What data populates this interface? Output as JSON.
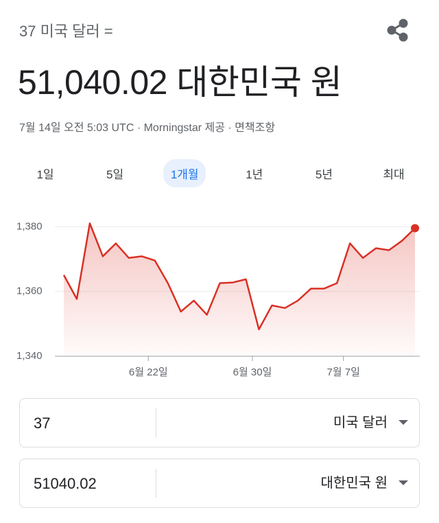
{
  "header": {
    "query": "37 미국 달러 =",
    "result": "51,040.02 대한민국 원",
    "source": "7월 14일 오전 5:03 UTC · Morningstar 제공 · 면책조항"
  },
  "tabs": [
    "1일",
    "5일",
    "1개월",
    "1년",
    "5년",
    "최대"
  ],
  "chart_data": {
    "type": "line",
    "x": [
      0,
      1,
      2,
      3,
      4,
      5,
      6,
      7,
      8,
      9,
      10,
      11,
      12,
      13,
      14,
      15,
      16,
      17,
      18,
      19,
      20,
      21,
      22,
      23,
      24,
      25,
      26,
      27
    ],
    "xlim": [
      0,
      27
    ],
    "xticks": [
      {
        "value": 6.5,
        "label": "6월 22일"
      },
      {
        "value": 14.5,
        "label": "6월 30일"
      },
      {
        "value": 21.5,
        "label": "7월 7일"
      }
    ],
    "ylim": [
      1340,
      1385
    ],
    "yticks": [
      {
        "value": 1340,
        "label": "1,340"
      },
      {
        "value": 1360,
        "label": "1,360"
      },
      {
        "value": 1380,
        "label": "1,380"
      }
    ],
    "grid": true,
    "series": [
      {
        "color": "#d93025",
        "values": [
          1365.1,
          1357.7,
          1381.1,
          1370.9,
          1374.9,
          1370.4,
          1370.9,
          1369.6,
          1362.6,
          1353.8,
          1357.2,
          1352.8,
          1362.6,
          1362.8,
          1363.8,
          1348.3,
          1355.7,
          1354.9,
          1357.2,
          1360.9,
          1360.9,
          1362.6,
          1374.9,
          1370.4,
          1373.4,
          1372.8,
          1375.7,
          1379.6
        ]
      }
    ]
  },
  "converter": {
    "from": {
      "amount": "37",
      "currency": "미국 달러"
    },
    "to": {
      "amount": "51040.02",
      "currency": "대한민국 원"
    }
  }
}
